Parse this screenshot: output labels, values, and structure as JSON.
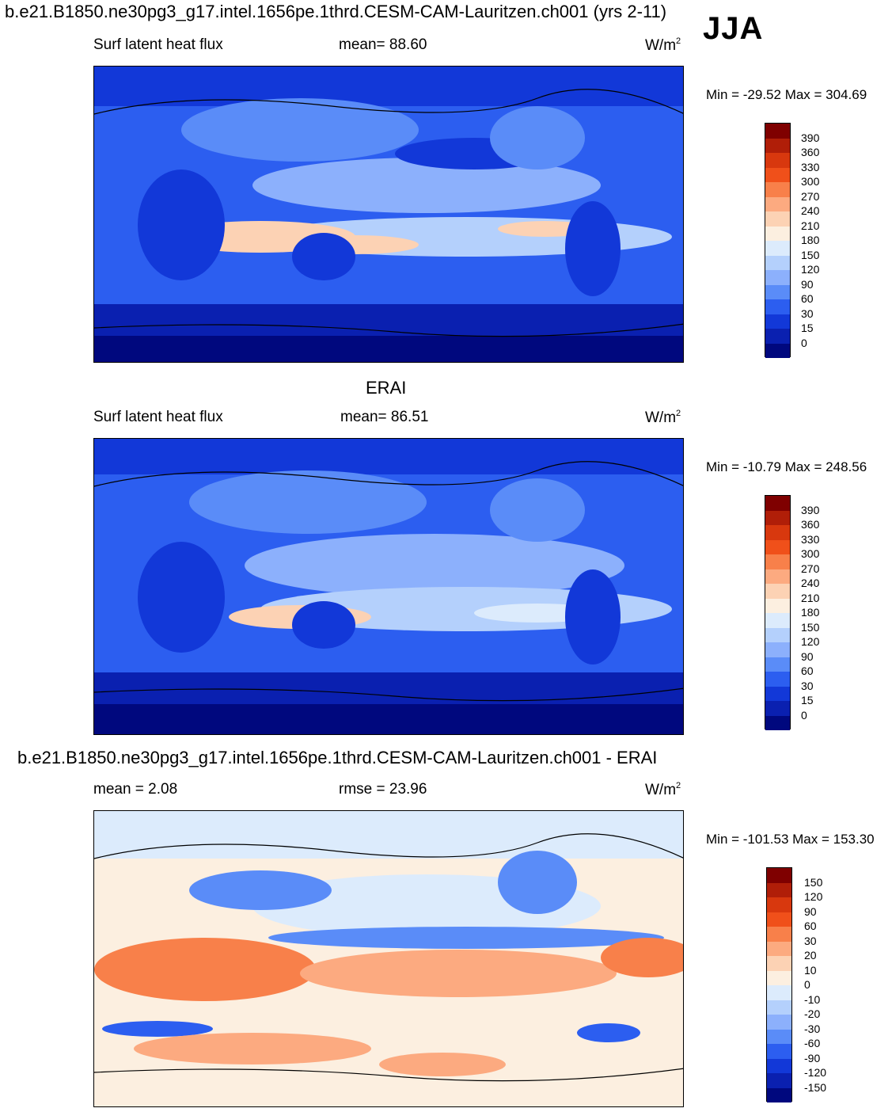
{
  "header": {
    "title": "b.e21.B1850.ne30pg3_g17.intel.1656pe.1thrd.CESM-CAM-Lauritzen.ch001 (yrs 2-11)",
    "season": "JJA"
  },
  "panel1": {
    "var_label": "Surf latent heat flux",
    "stat_text": "mean=  88.60",
    "units_base": "W/m",
    "units_exp": "2",
    "minmax": "Min = -29.52 Max = 304.69",
    "levels": [
      "390",
      "360",
      "330",
      "300",
      "270",
      "240",
      "210",
      "180",
      "150",
      "120",
      "90",
      "60",
      "30",
      "15",
      "0"
    ]
  },
  "panel2": {
    "heading": "ERAI",
    "var_label": "Surf latent heat flux",
    "stat_text": "mean=  86.51",
    "units_base": "W/m",
    "units_exp": "2",
    "minmax": "Min = -10.79 Max = 248.56",
    "levels": [
      "390",
      "360",
      "330",
      "300",
      "270",
      "240",
      "210",
      "180",
      "150",
      "120",
      "90",
      "60",
      "30",
      "15",
      "0"
    ]
  },
  "panel3": {
    "heading": "b.e21.B1850.ne30pg3_g17.intel.1656pe.1thrd.CESM-CAM-Lauritzen.ch001 - ERAI",
    "stat_text": "mean =   2.08",
    "rmse_text": "rmse =  23.96",
    "units_base": "W/m",
    "units_exp": "2",
    "minmax": "Min = -101.53 Max = 153.30",
    "levels": [
      "150",
      "120",
      "90",
      "60",
      "30",
      "20",
      "10",
      "0",
      "-10",
      "-20",
      "-30",
      "-60",
      "-90",
      "-120",
      "-150"
    ]
  },
  "colors": {
    "abs_scale": [
      "#7f0000",
      "#b01e08",
      "#d8380e",
      "#f0501a",
      "#f8804a",
      "#fcaa80",
      "#fcd2b4",
      "#fcefe0",
      "#dcebfc",
      "#b4d0fc",
      "#8cb0fc",
      "#5a8cf8",
      "#2c5ef0",
      "#1238d8",
      "#0a20b0",
      "#00087e"
    ],
    "diff_scale": [
      "#7f0000",
      "#b01e08",
      "#d8380e",
      "#f0501a",
      "#f8804a",
      "#fcaa80",
      "#fcd2b4",
      "#fcefe0",
      "#dcebfc",
      "#b4d0fc",
      "#8cb0fc",
      "#5a8cf8",
      "#2c5ef0",
      "#1238d8",
      "#0a20b0",
      "#00087e"
    ]
  }
}
